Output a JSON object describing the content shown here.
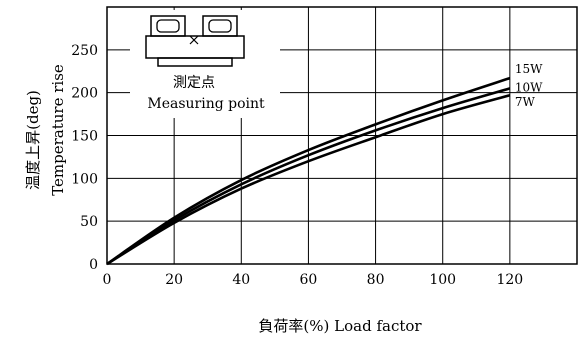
{
  "chart_data": {
    "type": "line",
    "xlabel": "負荷率(%)  Load factor",
    "ylabel_jp": "温度上昇(deg)",
    "ylabel_en": "Temperature rise",
    "xlim": [
      0,
      140
    ],
    "ylim": [
      0,
      300
    ],
    "x_ticks": [
      0,
      20,
      40,
      60,
      80,
      100,
      120
    ],
    "y_ticks": [
      0,
      50,
      100,
      150,
      200,
      250
    ],
    "grid": true,
    "series": [
      {
        "name": "15W",
        "x": [
          0,
          20,
          40,
          60,
          80,
          100,
          120
        ],
        "y": [
          0,
          54,
          98,
          133,
          163,
          191,
          217
        ]
      },
      {
        "name": "10W",
        "x": [
          0,
          20,
          40,
          60,
          80,
          100,
          120
        ],
        "y": [
          0,
          51,
          93,
          127,
          156,
          182,
          205
        ]
      },
      {
        "name": "7W",
        "x": [
          0,
          20,
          40,
          60,
          80,
          100,
          120
        ],
        "y": [
          0,
          48,
          88,
          120,
          148,
          175,
          197
        ]
      }
    ]
  },
  "inset": {
    "label_jp": "測定点",
    "label_en": "Measuring point"
  }
}
